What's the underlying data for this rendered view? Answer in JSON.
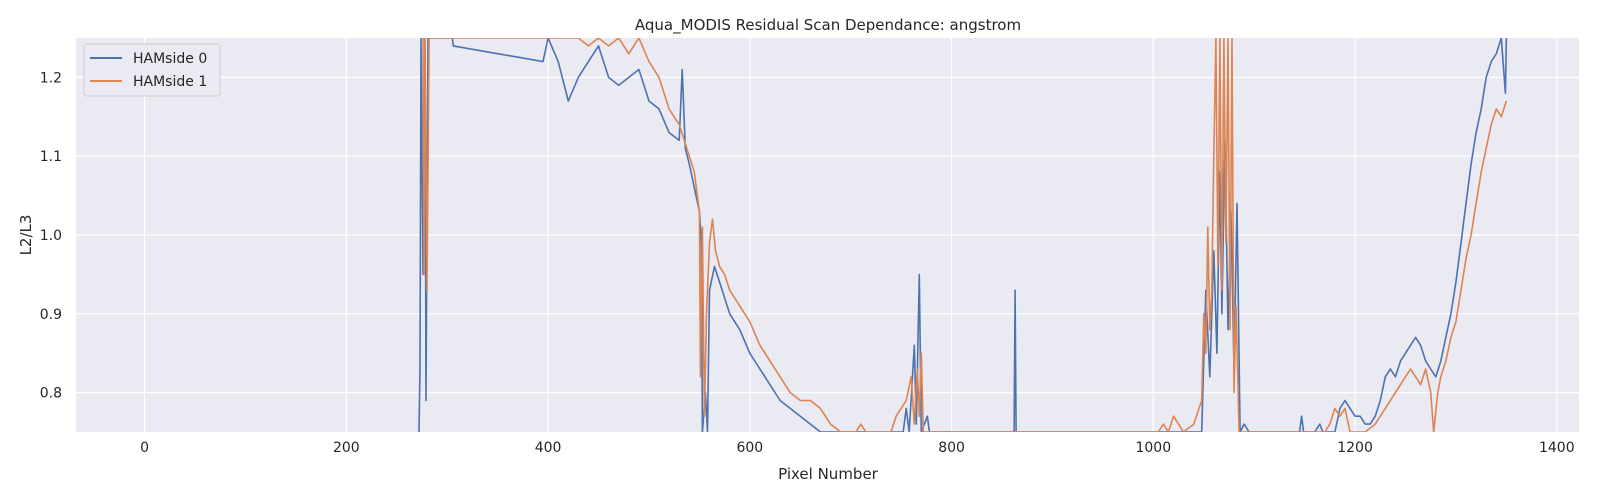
{
  "chart_data": {
    "type": "line",
    "title": "Aqua_MODIS Residual Scan Dependance: angstrom",
    "xlabel": "Pixel Number",
    "ylabel": "L2/L3",
    "xlim": [
      -68,
      1422
    ],
    "ylim": [
      0.75,
      1.25
    ],
    "xticks": [
      0,
      200,
      400,
      600,
      800,
      1000,
      1200,
      1400
    ],
    "yticks": [
      0.8,
      0.9,
      1.0,
      1.1,
      1.2
    ],
    "xtick_labels": [
      "0",
      "200",
      "400",
      "600",
      "800",
      "1000",
      "1200",
      "1400"
    ],
    "ytick_labels": [
      "0.8",
      "0.9",
      "1.0",
      "1.1",
      "1.2"
    ],
    "grid": true,
    "legend_position": "top-left",
    "background_color": "#eaeaf2",
    "series": [
      {
        "name": "HAMside 0",
        "color": "#4c72b0",
        "points": [
          [
            272,
            0.75
          ],
          [
            273,
            0.83
          ],
          [
            274,
            1.25
          ],
          [
            276,
            0.95
          ],
          [
            278,
            1.25
          ],
          [
            279,
            0.79
          ],
          [
            281,
            1.25
          ],
          [
            305,
            1.25
          ],
          [
            306,
            1.24
          ],
          [
            395,
            1.22
          ],
          [
            400,
            1.25
          ],
          [
            410,
            1.22
          ],
          [
            420,
            1.17
          ],
          [
            430,
            1.2
          ],
          [
            440,
            1.22
          ],
          [
            450,
            1.24
          ],
          [
            460,
            1.2
          ],
          [
            470,
            1.19
          ],
          [
            480,
            1.2
          ],
          [
            490,
            1.21
          ],
          [
            500,
            1.17
          ],
          [
            510,
            1.16
          ],
          [
            520,
            1.13
          ],
          [
            530,
            1.12
          ],
          [
            533,
            1.21
          ],
          [
            536,
            1.11
          ],
          [
            540,
            1.09
          ],
          [
            545,
            1.06
          ],
          [
            550,
            1.03
          ],
          [
            552,
            0.99
          ],
          [
            553,
            0.75
          ],
          [
            556,
            0.8
          ],
          [
            558,
            0.75
          ],
          [
            560,
            0.93
          ],
          [
            565,
            0.96
          ],
          [
            570,
            0.94
          ],
          [
            580,
            0.9
          ],
          [
            590,
            0.88
          ],
          [
            600,
            0.85
          ],
          [
            610,
            0.83
          ],
          [
            620,
            0.81
          ],
          [
            630,
            0.79
          ],
          [
            640,
            0.78
          ],
          [
            650,
            0.77
          ],
          [
            660,
            0.76
          ],
          [
            670,
            0.75
          ],
          [
            752,
            0.75
          ],
          [
            755,
            0.78
          ],
          [
            758,
            0.75
          ],
          [
            763,
            0.86
          ],
          [
            765,
            0.76
          ],
          [
            768,
            0.95
          ],
          [
            770,
            0.75
          ],
          [
            776,
            0.77
          ],
          [
            778,
            0.75
          ],
          [
            862,
            0.75
          ],
          [
            863,
            0.93
          ],
          [
            864,
            0.75
          ],
          [
            1048,
            0.75
          ],
          [
            1052,
            0.93
          ],
          [
            1056,
            0.82
          ],
          [
            1060,
            0.98
          ],
          [
            1063,
            0.85
          ],
          [
            1066,
            1.08
          ],
          [
            1068,
            0.9
          ],
          [
            1071,
            1.12
          ],
          [
            1074,
            0.88
          ],
          [
            1077,
            1.03
          ],
          [
            1080,
            0.83
          ],
          [
            1083,
            1.04
          ],
          [
            1086,
            0.75
          ],
          [
            1090,
            0.76
          ],
          [
            1095,
            0.75
          ],
          [
            1145,
            0.75
          ],
          [
            1147,
            0.77
          ],
          [
            1149,
            0.75
          ],
          [
            1160,
            0.75
          ],
          [
            1165,
            0.76
          ],
          [
            1168,
            0.75
          ],
          [
            1180,
            0.75
          ],
          [
            1185,
            0.78
          ],
          [
            1190,
            0.79
          ],
          [
            1195,
            0.78
          ],
          [
            1200,
            0.77
          ],
          [
            1205,
            0.77
          ],
          [
            1210,
            0.76
          ],
          [
            1215,
            0.76
          ],
          [
            1220,
            0.77
          ],
          [
            1225,
            0.79
          ],
          [
            1230,
            0.82
          ],
          [
            1235,
            0.83
          ],
          [
            1240,
            0.82
          ],
          [
            1245,
            0.84
          ],
          [
            1250,
            0.85
          ],
          [
            1255,
            0.86
          ],
          [
            1260,
            0.87
          ],
          [
            1265,
            0.86
          ],
          [
            1270,
            0.84
          ],
          [
            1275,
            0.83
          ],
          [
            1280,
            0.82
          ],
          [
            1285,
            0.84
          ],
          [
            1290,
            0.87
          ],
          [
            1295,
            0.9
          ],
          [
            1300,
            0.94
          ],
          [
            1305,
            0.99
          ],
          [
            1310,
            1.04
          ],
          [
            1315,
            1.09
          ],
          [
            1320,
            1.13
          ],
          [
            1325,
            1.16
          ],
          [
            1330,
            1.2
          ],
          [
            1335,
            1.22
          ],
          [
            1340,
            1.23
          ],
          [
            1345,
            1.25
          ],
          [
            1349,
            1.18
          ],
          [
            1350,
            1.25
          ]
        ]
      },
      {
        "name": "HAMside 1",
        "color": "#dd8452",
        "points": [
          [
            276,
            1.25
          ],
          [
            277,
            0.95
          ],
          [
            278,
            1.25
          ],
          [
            280,
            0.93
          ],
          [
            282,
            1.25
          ],
          [
            420,
            1.25
          ],
          [
            430,
            1.25
          ],
          [
            440,
            1.24
          ],
          [
            450,
            1.25
          ],
          [
            460,
            1.24
          ],
          [
            470,
            1.25
          ],
          [
            480,
            1.23
          ],
          [
            490,
            1.25
          ],
          [
            500,
            1.22
          ],
          [
            510,
            1.2
          ],
          [
            520,
            1.16
          ],
          [
            530,
            1.14
          ],
          [
            535,
            1.12
          ],
          [
            540,
            1.1
          ],
          [
            545,
            1.08
          ],
          [
            550,
            1.03
          ],
          [
            551,
            0.82
          ],
          [
            553,
            1.01
          ],
          [
            555,
            0.77
          ],
          [
            557,
            0.9
          ],
          [
            560,
            0.99
          ],
          [
            563,
            1.02
          ],
          [
            566,
            0.98
          ],
          [
            570,
            0.96
          ],
          [
            575,
            0.95
          ],
          [
            580,
            0.93
          ],
          [
            590,
            0.91
          ],
          [
            600,
            0.89
          ],
          [
            610,
            0.86
          ],
          [
            620,
            0.84
          ],
          [
            630,
            0.82
          ],
          [
            640,
            0.8
          ],
          [
            650,
            0.79
          ],
          [
            660,
            0.79
          ],
          [
            670,
            0.78
          ],
          [
            680,
            0.76
          ],
          [
            690,
            0.75
          ],
          [
            705,
            0.75
          ],
          [
            710,
            0.76
          ],
          [
            715,
            0.75
          ],
          [
            740,
            0.75
          ],
          [
            745,
            0.77
          ],
          [
            750,
            0.78
          ],
          [
            755,
            0.79
          ],
          [
            760,
            0.82
          ],
          [
            763,
            0.76
          ],
          [
            766,
            0.83
          ],
          [
            768,
            0.77
          ],
          [
            770,
            0.85
          ],
          [
            772,
            0.75
          ],
          [
            1005,
            0.75
          ],
          [
            1010,
            0.76
          ],
          [
            1015,
            0.75
          ],
          [
            1020,
            0.77
          ],
          [
            1025,
            0.76
          ],
          [
            1030,
            0.75
          ],
          [
            1040,
            0.76
          ],
          [
            1048,
            0.79
          ],
          [
            1050,
            0.9
          ],
          [
            1052,
            0.85
          ],
          [
            1054,
            1.01
          ],
          [
            1056,
            0.88
          ],
          [
            1058,
            0.93
          ],
          [
            1060,
            1.1
          ],
          [
            1062,
            1.25
          ],
          [
            1064,
            0.96
          ],
          [
            1066,
            1.25
          ],
          [
            1068,
            0.93
          ],
          [
            1070,
            1.25
          ],
          [
            1072,
            0.99
          ],
          [
            1074,
            1.25
          ],
          [
            1076,
            0.88
          ],
          [
            1078,
            1.25
          ],
          [
            1080,
            0.8
          ],
          [
            1082,
            0.91
          ],
          [
            1085,
            0.75
          ],
          [
            1170,
            0.75
          ],
          [
            1175,
            0.76
          ],
          [
            1180,
            0.78
          ],
          [
            1185,
            0.77
          ],
          [
            1190,
            0.78
          ],
          [
            1195,
            0.75
          ],
          [
            1200,
            0.75
          ],
          [
            1210,
            0.75
          ],
          [
            1220,
            0.76
          ],
          [
            1230,
            0.78
          ],
          [
            1240,
            0.8
          ],
          [
            1250,
            0.82
          ],
          [
            1255,
            0.83
          ],
          [
            1260,
            0.82
          ],
          [
            1265,
            0.81
          ],
          [
            1270,
            0.83
          ],
          [
            1275,
            0.8
          ],
          [
            1278,
            0.75
          ],
          [
            1282,
            0.8
          ],
          [
            1285,
            0.82
          ],
          [
            1290,
            0.84
          ],
          [
            1295,
            0.87
          ],
          [
            1300,
            0.89
          ],
          [
            1305,
            0.93
          ],
          [
            1310,
            0.97
          ],
          [
            1315,
            1.0
          ],
          [
            1320,
            1.04
          ],
          [
            1325,
            1.08
          ],
          [
            1330,
            1.11
          ],
          [
            1335,
            1.14
          ],
          [
            1340,
            1.16
          ],
          [
            1345,
            1.15
          ],
          [
            1350,
            1.17
          ]
        ]
      }
    ]
  }
}
